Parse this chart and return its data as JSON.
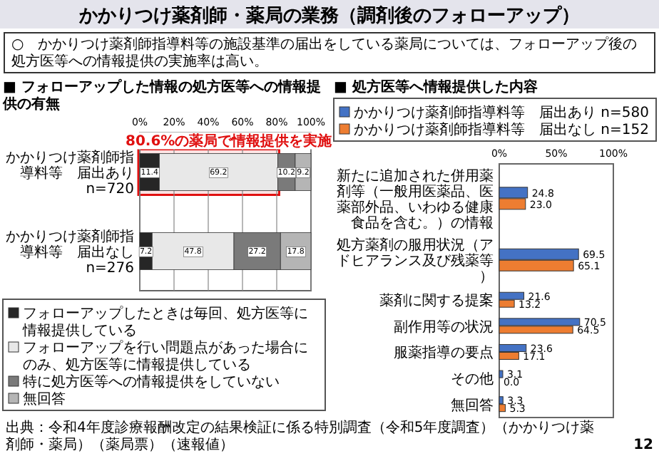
{
  "chart_data": [
    {
      "type": "bar",
      "orientation": "horizontal",
      "stacked": true,
      "title": "■ フォローアップした情報の処方医等への情報提供の有無",
      "categories": [
        "かかりつけ薬剤師指導料等　届出あり\nn=720",
        "かかりつけ薬剤師指導料等　届出なし\nn=276"
      ],
      "series": [
        {
          "name": "フォローアップしたときは毎回、処方医等に情報提供している",
          "color": "#262626",
          "values": [
            11.4,
            7.2
          ]
        },
        {
          "name": "フォローアップを行い問題点があった場合にのみ、処方医等に情報提供している",
          "color": "#e8e8e8",
          "values": [
            69.2,
            47.8
          ]
        },
        {
          "name": "特に処方医等への情報提供をしていない",
          "color": "#7a7a7a",
          "values": [
            10.2,
            27.2
          ]
        },
        {
          "name": "無回答",
          "color": "#b5b5b5",
          "values": [
            9.2,
            17.8
          ]
        }
      ],
      "xlim": [
        0,
        100
      ],
      "xticks": [
        {
          "value": 0,
          "label": "0%"
        },
        {
          "value": 20,
          "label": "20%"
        },
        {
          "value": 40,
          "label": "40%"
        },
        {
          "value": 60,
          "label": "60%"
        },
        {
          "value": 80,
          "label": "80%"
        },
        {
          "value": 100,
          "label": "100%"
        }
      ],
      "grid": "x",
      "legend": "bottom",
      "data_labels": true,
      "bands": [
        {
          "axis": "x",
          "from": 0,
          "to": 80.6,
          "label": "80.6%の薬局で情報提供を実施",
          "color": "#e01010"
        }
      ],
      "annotations": [
        "かかりつけ薬剤師・薬局の業務（調剤後のフォローアップ）",
        "○　かかりつけ薬剤師指導料等の施設基準の届出をしている薬局については、フォローアップ後の処方医等への情報提供の実施率は高い。"
      ]
    },
    {
      "type": "bar",
      "orientation": "horizontal",
      "title": "■ 処方医等へ情報提供した内容",
      "categories": [
        "新たに追加された併用薬剤等（一般用医薬品、医薬部外品、いわゆる健康食品を含む。）の情報",
        "処方薬剤の服用状況（アドヒアランス及び残薬等）",
        "薬剤に関する提案",
        "副作用等の状況",
        "服薬指導の要点",
        "その他",
        "無回答"
      ],
      "series": [
        {
          "name": "かかりつけ薬剤師指導料等　届出あり n=580",
          "color": "#4472c4",
          "values": [
            24.8,
            69.5,
            21.6,
            70.5,
            23.6,
            3.1,
            3.3
          ],
          "value_labels": [
            "24.8",
            "69.5",
            "21.6",
            "70.5",
            "23.6",
            "3.1",
            "3.3"
          ]
        },
        {
          "name": "かかりつけ薬剤師指導料等　届出なし n=152",
          "color": "#ed7d31",
          "values": [
            23.0,
            65.1,
            13.2,
            64.5,
            17.1,
            0.0,
            5.3
          ],
          "value_labels": [
            "23.0",
            "65.1",
            "13.2",
            "64.5",
            "17.1",
            "0.0",
            "5.3"
          ]
        }
      ],
      "xlim": [
        0,
        100
      ],
      "xticks": [
        {
          "value": 0,
          "label": "0%"
        },
        {
          "value": 50,
          "label": "50%"
        },
        {
          "value": 100,
          "label": "100%"
        }
      ],
      "legend": "top",
      "annotations": [
        "出典：令和4年度診療報酬改定の結果検証に係る特別調査（令和5年度調査）（かかりつけ薬剤師・薬局）（薬局票）（速報値）",
        "12"
      ]
    }
  ]
}
